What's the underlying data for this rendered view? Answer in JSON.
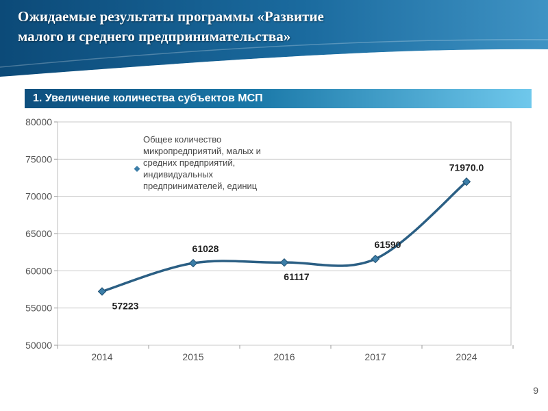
{
  "slide": {
    "title_line1": "Ожидаемые результаты программы «Развитие",
    "title_line2": "малого и среднего предпринимательства»",
    "section_heading": "1. Увеличение количества субъектов МСП",
    "page_number": "9"
  },
  "colors": {
    "header_dark": "#0c4a78",
    "header_light": "#3f93c4",
    "series_line": "#2b5f84",
    "marker": "#3c7ea8"
  },
  "chart_data": {
    "type": "line",
    "title": "",
    "xlabel": "",
    "ylabel": "",
    "categories": [
      "2014",
      "2015",
      "2016",
      "2017",
      "2024"
    ],
    "ylim": [
      50000,
      80000
    ],
    "yticks": [
      "50000",
      "55000",
      "60000",
      "65000",
      "70000",
      "75000",
      "80000"
    ],
    "grid": true,
    "legend_position": "top-left inside plot",
    "series": [
      {
        "name": "Общее количество микропредприятий, малых и средних предприятий, индивидуальных предпринимателей, единиц",
        "values": [
          57223,
          61028,
          61117,
          61590,
          71970
        ],
        "labels": [
          "57223",
          "61028",
          "61117",
          "61590",
          "71970.0"
        ]
      }
    ]
  }
}
